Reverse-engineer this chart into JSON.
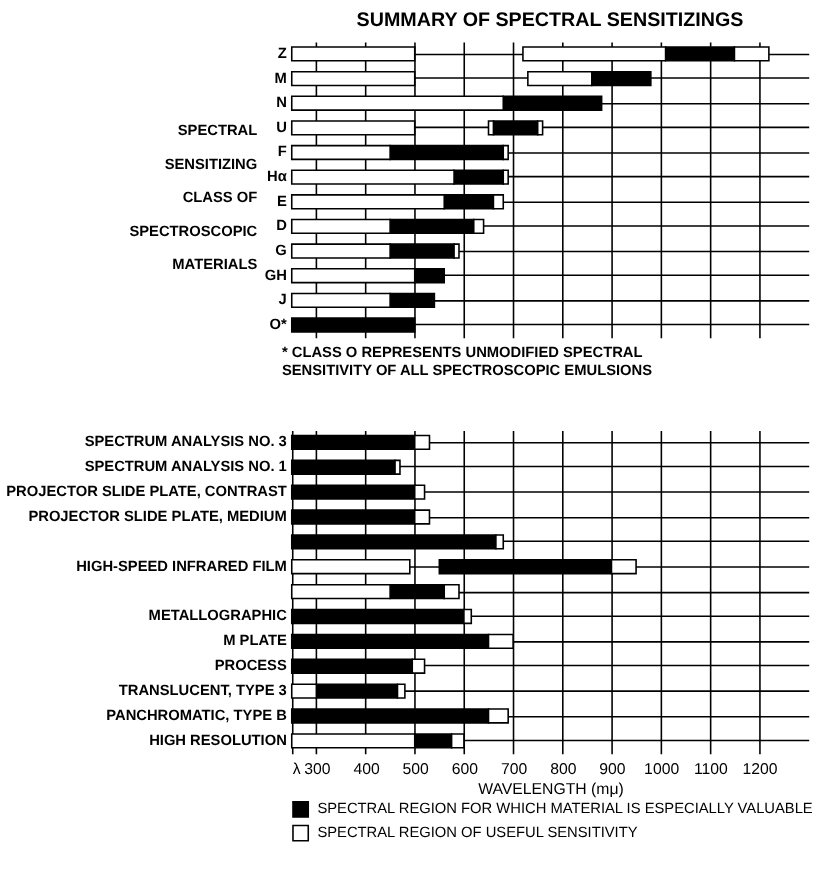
{
  "chart_data": [
    {
      "type": "bar",
      "orientation": "horizontal",
      "title": "SUMMARY OF SPECTRAL SENSITIZINGS",
      "ylabel": "SPECTRAL SENSITIZING CLASS OF SPECTROSCOPIC MATERIALS",
      "categories": [
        "Z",
        "M",
        "N",
        "U",
        "F",
        "Hα",
        "E",
        "D",
        "G",
        "GH",
        "J",
        "O*"
      ],
      "series": [
        {
          "color": "#000000",
          "base": [
            1010,
            860,
            680,
            660,
            450,
            580,
            560,
            450,
            450,
            500,
            450,
            250
          ],
          "values": [
            140,
            120,
            200,
            90,
            230,
            100,
            100,
            170,
            130,
            60,
            90,
            250
          ]
        },
        {
          "color": "#ffffff",
          "base": [
            250,
            250,
            250,
            250,
            250,
            250,
            250,
            250,
            250,
            250,
            250,
            null
          ],
          "values": [
            250,
            250,
            430,
            250,
            200,
            330,
            310,
            200,
            200,
            250,
            200,
            null
          ]
        },
        {
          "color": "#ffffff",
          "base": [
            720,
            730,
            null,
            650,
            null,
            null,
            null,
            null,
            null,
            null,
            null,
            null
          ],
          "values": [
            290,
            130,
            null,
            10,
            null,
            null,
            null,
            null,
            null,
            null,
            null,
            null
          ]
        },
        {
          "color": "#ffffff",
          "base": [
            1150,
            null,
            null,
            750,
            680,
            680,
            660,
            620,
            580,
            null,
            null,
            null
          ],
          "values": [
            70,
            null,
            null,
            10,
            10,
            10,
            20,
            20,
            10,
            null,
            null,
            null
          ]
        }
      ],
      "xlim": [
        250,
        1300
      ],
      "xticks": [
        300,
        400,
        500,
        600,
        700,
        800,
        900,
        1000,
        1100,
        1200
      ],
      "tick_labels": "y",
      "grid": true,
      "legend": false,
      "annotations": [
        "* CLASS O REPRESENTS UNMODIFIED SPECTRAL SENSITIVITY OF ALL SPECTROSCOPIC EMULSIONS"
      ]
    },
    {
      "type": "bar",
      "orientation": "horizontal",
      "xlabel": "WAVELENGTH (mμ)",
      "categories": [
        "SPECTRUM ANALYSIS NO. 3",
        "SPECTRUM ANALYSIS NO. 1",
        "PROJECTOR SLIDE PLATE, CONTRAST",
        "PROJECTOR SLIDE PLATE, MEDIUM",
        null,
        "HIGH-SPEED INFRARED FILM",
        null,
        "METALLOGRAPHIC",
        "M PLATE",
        "PROCESS",
        "TRANSLUCENT, TYPE 3",
        "PANCHROMATIC, TYPE B",
        "HIGH RESOLUTION"
      ],
      "series": [
        {
          "name": "SPECTRAL REGION FOR WHICH MATERIAL IS ESPECIALLY VALUABLE",
          "color": "#000000",
          "base": [
            250,
            250,
            250,
            250,
            250,
            550,
            450,
            250,
            250,
            250,
            300,
            250,
            500
          ],
          "values": [
            250,
            210,
            250,
            250,
            415,
            350,
            110,
            350,
            400,
            245,
            165,
            400,
            75
          ]
        },
        {
          "name": "SPECTRAL REGION OF USEFUL SENSITIVITY",
          "color": "#ffffff",
          "base": [
            null,
            null,
            null,
            null,
            null,
            250,
            250,
            null,
            null,
            null,
            250,
            null,
            250
          ],
          "values": [
            null,
            null,
            null,
            null,
            null,
            240,
            200,
            null,
            null,
            null,
            50,
            null,
            250
          ]
        },
        {
          "color": "#ffffff",
          "base": [
            500,
            460,
            500,
            500,
            665,
            900,
            560,
            600,
            650,
            495,
            465,
            650,
            575
          ],
          "values": [
            30,
            10,
            20,
            30,
            15,
            50,
            30,
            15,
            50,
            25,
            15,
            40,
            25
          ]
        }
      ],
      "xlim": [
        250,
        1300
      ],
      "xticks": [
        {
          "value": 250,
          "label": "λ"
        },
        300,
        400,
        500,
        600,
        700,
        800,
        900,
        1000,
        1100,
        1200
      ],
      "grid": true,
      "legend": "bottom"
    }
  ]
}
